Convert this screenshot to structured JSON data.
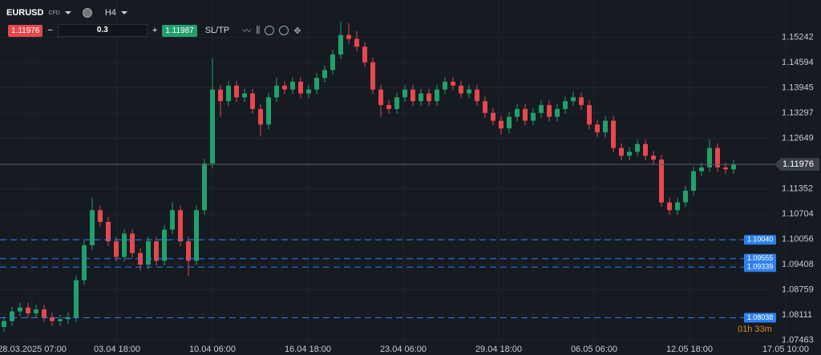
{
  "toolbar": {
    "symbol": "EURUSD",
    "instrument_type": "CFD",
    "timeframe": "H4",
    "sell_price": "1.11976",
    "volume": "0.3",
    "buy_price": "1.11987",
    "sltp": "SL/TP"
  },
  "chart_data": {
    "type": "candlestick",
    "up_color": "#22a06b",
    "down_color": "#e5484d",
    "grid": true,
    "ohlc": [
      [
        1.078,
        1.0807,
        1.0768,
        1.0795
      ],
      [
        1.0795,
        1.0832,
        1.0783,
        1.082
      ],
      [
        1.082,
        1.0842,
        1.0808,
        1.083
      ],
      [
        1.083,
        1.0842,
        1.0803,
        1.0815
      ],
      [
        1.0815,
        1.0837,
        1.0803,
        1.0825
      ],
      [
        1.0825,
        1.0837,
        1.0793,
        1.0805
      ],
      [
        1.0805,
        1.0817,
        1.0783,
        1.0795
      ],
      [
        1.0795,
        1.0812,
        1.0783,
        1.08
      ],
      [
        1.08,
        1.0817,
        1.0788,
        1.0805
      ],
      [
        1.0805,
        1.0912,
        1.0793,
        1.09
      ],
      [
        1.09,
        1.1002,
        1.0888,
        1.099
      ],
      [
        1.099,
        1.1112,
        1.0978,
        1.108
      ],
      [
        1.108,
        1.1092,
        1.1038,
        1.105
      ],
      [
        1.105,
        1.1062,
        1.0988,
        1.1
      ],
      [
        1.1,
        1.1012,
        1.0948,
        1.096
      ],
      [
        1.096,
        1.1032,
        1.0948,
        1.102
      ],
      [
        1.102,
        1.1032,
        1.0958,
        1.097
      ],
      [
        1.097,
        1.0982,
        1.0925,
        1.094
      ],
      [
        1.094,
        1.1012,
        1.0928,
        1.1
      ],
      [
        1.1,
        1.1012,
        1.0938,
        1.095
      ],
      [
        1.095,
        1.1042,
        1.0938,
        1.103
      ],
      [
        1.103,
        1.11,
        1.1018,
        1.108
      ],
      [
        1.108,
        1.1092,
        1.0988,
        1.1
      ],
      [
        1.1,
        1.1012,
        1.091,
        1.095
      ],
      [
        1.095,
        1.1092,
        1.0938,
        1.108
      ],
      [
        1.108,
        1.1212,
        1.1068,
        1.12
      ],
      [
        1.12,
        1.147,
        1.1188,
        1.139
      ],
      [
        1.139,
        1.1402,
        1.132,
        1.136
      ],
      [
        1.136,
        1.1412,
        1.1348,
        1.14
      ],
      [
        1.14,
        1.1412,
        1.1358,
        1.137
      ],
      [
        1.137,
        1.1392,
        1.1358,
        1.138
      ],
      [
        1.138,
        1.1392,
        1.1328,
        1.134
      ],
      [
        1.134,
        1.1352,
        1.127,
        1.13
      ],
      [
        1.13,
        1.1382,
        1.1288,
        1.137
      ],
      [
        1.137,
        1.142,
        1.1358,
        1.14
      ],
      [
        1.14,
        1.1412,
        1.1378,
        1.139
      ],
      [
        1.139,
        1.1422,
        1.1378,
        1.141
      ],
      [
        1.141,
        1.1422,
        1.1368,
        1.138
      ],
      [
        1.138,
        1.1402,
        1.1368,
        1.139
      ],
      [
        1.139,
        1.1432,
        1.1378,
        1.142
      ],
      [
        1.142,
        1.1452,
        1.1408,
        1.144
      ],
      [
        1.144,
        1.1492,
        1.1428,
        1.148
      ],
      [
        1.148,
        1.1565,
        1.1468,
        1.153
      ],
      [
        1.153,
        1.156,
        1.1508,
        1.152
      ],
      [
        1.152,
        1.154,
        1.1488,
        1.15
      ],
      [
        1.15,
        1.1512,
        1.1448,
        1.146
      ],
      [
        1.146,
        1.1472,
        1.1378,
        1.139
      ],
      [
        1.139,
        1.1402,
        1.132,
        1.135
      ],
      [
        1.135,
        1.1362,
        1.1328,
        1.134
      ],
      [
        1.134,
        1.1382,
        1.1328,
        1.137
      ],
      [
        1.137,
        1.1402,
        1.1358,
        1.139
      ],
      [
        1.139,
        1.1402,
        1.1348,
        1.136
      ],
      [
        1.136,
        1.1392,
        1.1348,
        1.138
      ],
      [
        1.138,
        1.1392,
        1.1348,
        1.136
      ],
      [
        1.136,
        1.1402,
        1.1348,
        1.139
      ],
      [
        1.139,
        1.1422,
        1.1378,
        1.141
      ],
      [
        1.141,
        1.1422,
        1.1388,
        1.14
      ],
      [
        1.14,
        1.1412,
        1.1368,
        1.138
      ],
      [
        1.138,
        1.1402,
        1.1368,
        1.139
      ],
      [
        1.139,
        1.1402,
        1.1348,
        1.136
      ],
      [
        1.136,
        1.1372,
        1.1318,
        1.133
      ],
      [
        1.133,
        1.1342,
        1.1298,
        1.131
      ],
      [
        1.131,
        1.1322,
        1.1275,
        1.129
      ],
      [
        1.129,
        1.1332,
        1.1278,
        1.132
      ],
      [
        1.132,
        1.1352,
        1.1308,
        1.134
      ],
      [
        1.134,
        1.1352,
        1.1298,
        1.131
      ],
      [
        1.131,
        1.1342,
        1.1298,
        1.133
      ],
      [
        1.133,
        1.1362,
        1.1318,
        1.135
      ],
      [
        1.135,
        1.1362,
        1.1308,
        1.132
      ],
      [
        1.132,
        1.1352,
        1.1308,
        1.134
      ],
      [
        1.134,
        1.1372,
        1.1328,
        1.136
      ],
      [
        1.136,
        1.1385,
        1.1348,
        1.137
      ],
      [
        1.137,
        1.1382,
        1.1338,
        1.135
      ],
      [
        1.135,
        1.1362,
        1.1288,
        1.13
      ],
      [
        1.13,
        1.1312,
        1.1268,
        1.128
      ],
      [
        1.128,
        1.1322,
        1.1268,
        1.131
      ],
      [
        1.131,
        1.1322,
        1.1228,
        1.124
      ],
      [
        1.124,
        1.1252,
        1.1208,
        1.122
      ],
      [
        1.122,
        1.1242,
        1.1208,
        1.123
      ],
      [
        1.123,
        1.1262,
        1.1218,
        1.125
      ],
      [
        1.125,
        1.1262,
        1.1208,
        1.122
      ],
      [
        1.122,
        1.1232,
        1.1198,
        1.121
      ],
      [
        1.121,
        1.1222,
        1.1088,
        1.11
      ],
      [
        1.11,
        1.1112,
        1.1068,
        1.108
      ],
      [
        1.108,
        1.1112,
        1.1068,
        1.11
      ],
      [
        1.11,
        1.1142,
        1.1088,
        1.113
      ],
      [
        1.113,
        1.1192,
        1.1118,
        1.118
      ],
      [
        1.118,
        1.1202,
        1.1168,
        1.119
      ],
      [
        1.119,
        1.1262,
        1.1178,
        1.124
      ],
      [
        1.124,
        1.1252,
        1.1178,
        1.119
      ],
      [
        1.119,
        1.1202,
        1.1173,
        1.1185
      ],
      [
        1.1185,
        1.121,
        1.1173,
        1.11976
      ]
    ],
    "xlim": [
      -0.5,
      101.9
    ],
    "xticks": [
      {
        "value": 3.5,
        "label": "28.03.2025 07:00"
      },
      {
        "value": 14.1,
        "label": "03.04 18:00"
      },
      {
        "value": 26,
        "label": "10.04 06:00"
      },
      {
        "value": 37.9,
        "label": "16.04 18:00"
      },
      {
        "value": 49.8,
        "label": "23.04 06:00"
      },
      {
        "value": 61.7,
        "label": "29.04 18:00"
      },
      {
        "value": 73.6,
        "label": "06.05 06:00"
      },
      {
        "value": 85.5,
        "label": "12.05 18:00"
      },
      {
        "value": 97.5,
        "label": "17.05 10:00"
      }
    ],
    "ylim": [
      1.0708,
      1.162
    ],
    "yticks": [
      1.15242,
      1.14594,
      1.13945,
      1.13297,
      1.12649,
      1.11352,
      1.10704,
      1.10056,
      1.09408,
      1.08759,
      1.08111,
      1.07463
    ],
    "current_price": 1.11976,
    "price_levels": [
      {
        "value": 1.1004,
        "label": "1.10040"
      },
      {
        "value": 1.09555,
        "label": "1.09555"
      },
      {
        "value": 1.09339,
        "label": "1.09339"
      },
      {
        "value": 1.08038,
        "label": "1.08038"
      }
    ],
    "level_color": "#2f80ed",
    "countdown": "01h 33m"
  }
}
